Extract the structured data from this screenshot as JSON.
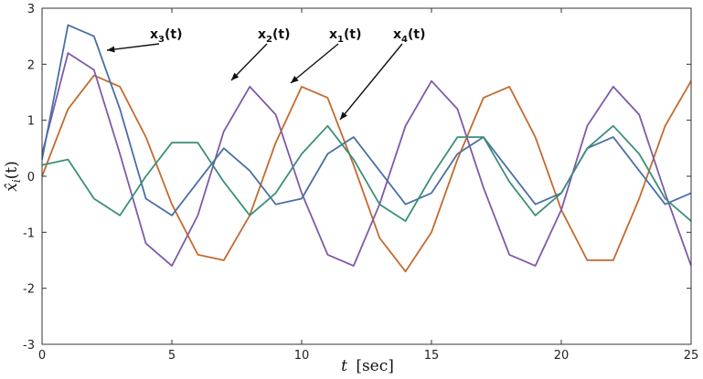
{
  "chart_data": {
    "type": "line",
    "title": "",
    "xlabel_italic": "t",
    "xlabel_unit": "[sec]",
    "ylabel_base": "x̂",
    "ylabel_sub": "i",
    "ylabel_arg": "(t)",
    "xlim": [
      0,
      25
    ],
    "ylim": [
      -3,
      3
    ],
    "xticks": [
      0,
      5,
      10,
      15,
      20,
      25
    ],
    "yticks": [
      -3,
      -2,
      -1,
      0,
      1,
      2,
      3
    ],
    "grid": false,
    "legend": "none",
    "series": [
      {
        "label_base": "x",
        "label_sub": "1",
        "label_arg": "(t)",
        "color": "#c46a2e",
        "x": [
          0,
          1,
          2,
          3,
          4,
          5,
          6,
          7,
          8,
          9,
          10,
          11,
          12,
          13,
          14,
          15,
          16,
          17,
          18,
          19,
          20,
          21,
          22,
          23,
          24,
          25
        ],
        "y": [
          0.0,
          1.2,
          1.8,
          1.6,
          0.7,
          -0.5,
          -1.4,
          -1.5,
          -0.7,
          0.6,
          1.6,
          1.4,
          0.2,
          -1.1,
          -1.7,
          -1.0,
          0.3,
          1.4,
          1.6,
          0.7,
          -0.6,
          -1.5,
          -1.5,
          -0.4,
          0.9,
          1.7
        ]
      },
      {
        "label_base": "x",
        "label_sub": "2",
        "label_arg": "(t)",
        "color": "#7f5aa8",
        "x": [
          0,
          1,
          2,
          3,
          4,
          5,
          6,
          7,
          8,
          9,
          10,
          11,
          12,
          13,
          14,
          15,
          16,
          17,
          18,
          19,
          20,
          21,
          22,
          23,
          24,
          25
        ],
        "y": [
          0.4,
          2.2,
          1.9,
          0.4,
          -1.2,
          -1.6,
          -0.7,
          0.8,
          1.6,
          1.1,
          -0.3,
          -1.4,
          -1.6,
          -0.5,
          0.9,
          1.7,
          1.2,
          -0.2,
          -1.4,
          -1.6,
          -0.6,
          0.9,
          1.6,
          1.1,
          -0.3,
          -1.6
        ]
      },
      {
        "label_base": "x",
        "label_sub": "3",
        "label_arg": "(t)",
        "color": "#4a6fa5",
        "x": [
          0,
          1,
          2,
          3,
          4,
          5,
          6,
          7,
          8,
          9,
          10,
          11,
          12,
          13,
          14,
          15,
          16,
          17,
          18,
          19,
          20,
          21,
          22,
          23,
          24,
          25
        ],
        "y": [
          0.3,
          2.7,
          2.5,
          1.2,
          -0.4,
          -0.7,
          -0.1,
          0.5,
          0.1,
          -0.5,
          -0.4,
          0.4,
          0.7,
          0.1,
          -0.5,
          -0.3,
          0.4,
          0.7,
          0.1,
          -0.5,
          -0.3,
          0.5,
          0.7,
          0.1,
          -0.5,
          -0.3
        ]
      },
      {
        "label_base": "x",
        "label_sub": "4",
        "label_arg": "(t)",
        "color": "#3c8f7a",
        "x": [
          0,
          1,
          2,
          3,
          4,
          5,
          6,
          7,
          8,
          9,
          10,
          11,
          12,
          13,
          14,
          15,
          16,
          17,
          18,
          19,
          20,
          21,
          22,
          23,
          24,
          25
        ],
        "y": [
          0.2,
          0.3,
          -0.4,
          -0.7,
          0.0,
          0.6,
          0.6,
          -0.1,
          -0.7,
          -0.3,
          0.4,
          0.9,
          0.3,
          -0.5,
          -0.8,
          0.0,
          0.7,
          0.7,
          -0.1,
          -0.7,
          -0.3,
          0.5,
          0.9,
          0.4,
          -0.4,
          -0.8
        ]
      }
    ]
  }
}
